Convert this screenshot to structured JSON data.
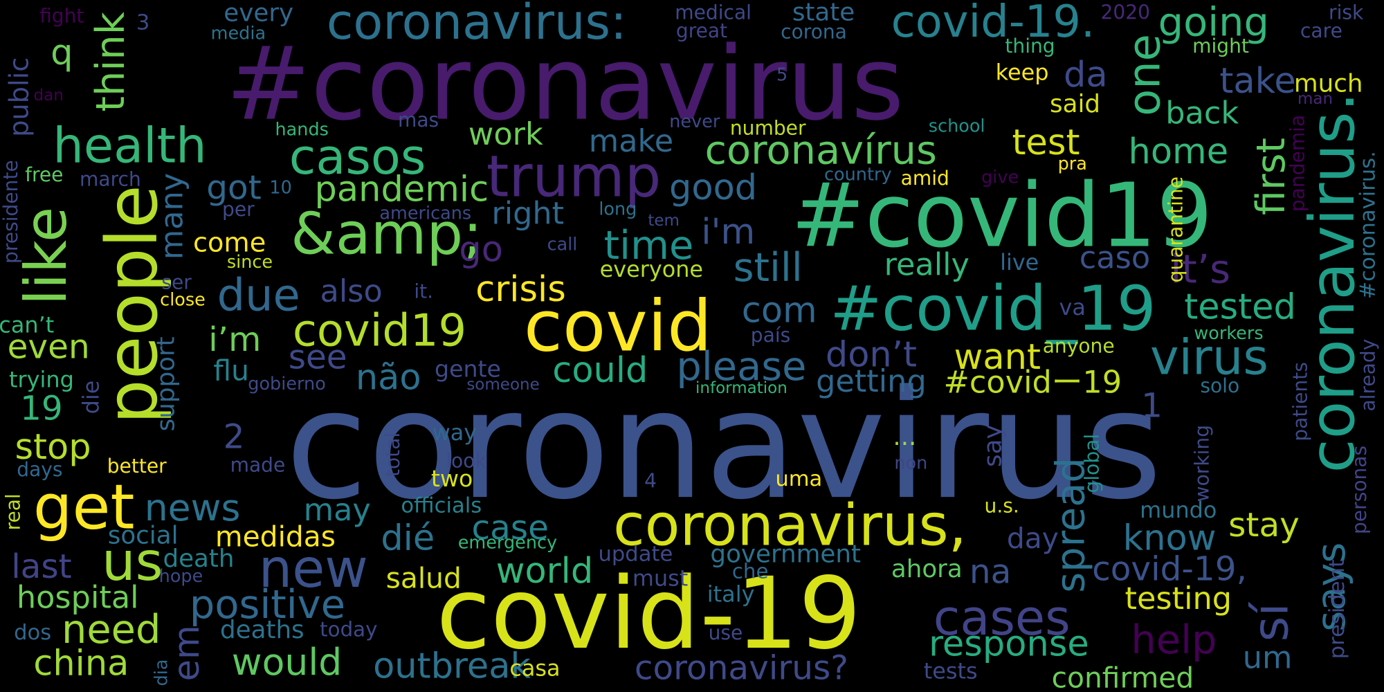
{
  "words": [
    "coronavirus",
    "#coronavirus",
    "#covid19",
    "covid-19",
    "people",
    "coronavirus.",
    "coronavirus,",
    "covid",
    "#covid_19",
    "trump",
    "&amp;",
    "coronavirus:",
    "covid-19.",
    "like",
    "health",
    "casos",
    "coronavírus",
    "virus",
    "get",
    "us",
    "new",
    "cases",
    "sí",
    "says",
    "covid19",
    "crisis",
    "due",
    "one",
    "going",
    "da",
    "take",
    "back",
    "home",
    "first",
    "test",
    "said",
    "keep",
    "much",
    "it’s",
    "tested",
    "caso",
    "really",
    "live",
    "still",
    "time",
    "i'm",
    "good",
    "make",
    "work",
    "pandemic",
    "got",
    "think",
    "q",
    "public",
    "many",
    "come",
    "go",
    "right",
    "com",
    "please",
    "could",
    "não",
    "see",
    "i’m",
    "also",
    "don’t",
    "want",
    "getting",
    "#covidー19",
    "flu",
    "even",
    "19",
    "stop",
    "news",
    "may",
    "dié",
    "case",
    "medidas",
    "social",
    "last",
    "hospital",
    "need",
    "china",
    "em",
    "positive",
    "would",
    "deaths",
    "death",
    "outbreak",
    "world",
    "salud",
    "coronavirus?",
    "response",
    "help",
    "testing",
    "covid-19,",
    "na",
    "spread",
    "know",
    "stay",
    "day",
    "confirmed",
    "um",
    "tests",
    "ahora",
    "government",
    "update",
    "must",
    "che",
    "italy",
    "use",
    "today",
    "casa",
    "emergency",
    "officials",
    "two",
    "look",
    "way",
    "total",
    "uma",
    "4",
    "2",
    "1",
    "...",
    "non",
    "say",
    "global",
    "u.s.",
    "mundo",
    "working",
    "trying",
    "can’t",
    "presidente",
    "free",
    "march",
    "per",
    "10",
    "since",
    "ser",
    "close",
    "support",
    "die",
    "days",
    "better",
    "made",
    "real",
    "hope",
    "dos",
    "dia",
    "fight",
    "3",
    "every",
    "media",
    "dan",
    "hands",
    "mas",
    "medical",
    "great",
    "corona",
    "state",
    "2020",
    "risk",
    "care",
    "might",
    "thing",
    "5",
    "never",
    "number",
    "school",
    "pra",
    "man",
    "pandemia",
    "quarantine",
    "#coronavirus.",
    "already",
    "president",
    "personas",
    "patients",
    "amid",
    "country",
    "give",
    "long",
    "tem",
    "americans",
    "call",
    "everyone",
    "it.",
    "país",
    "va",
    "anyone",
    "workers",
    "solo",
    "information",
    "someone",
    "gente",
    "gobierno"
  ]
}
